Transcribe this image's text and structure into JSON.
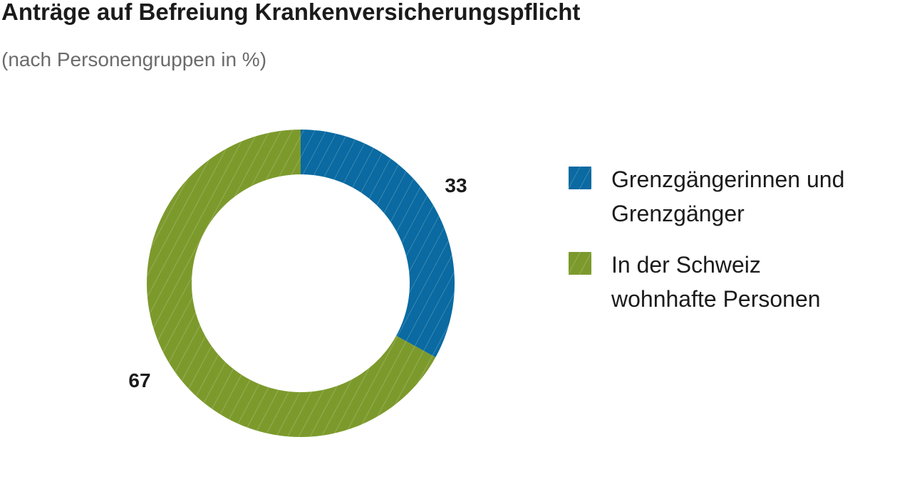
{
  "title": "Anträge auf Befreiung Krankenversicherungspflicht",
  "subtitle": "(nach Personengruppen in %)",
  "chart_data": {
    "type": "pie",
    "variant": "donut",
    "title": "Anträge auf Befreiung Krankenversicherungspflicht",
    "subtitle": "(nach Personengruppen in %)",
    "legend_position": "right",
    "slices": [
      {
        "label": "Grenzgängerinnen und Grenzgänger",
        "value": 33,
        "display": "33",
        "color": "#0a6aa1"
      },
      {
        "label": "In der Schweiz wohnhafte Personen",
        "value": 67,
        "display": "67",
        "color": "#7c9a2c"
      }
    ]
  }
}
